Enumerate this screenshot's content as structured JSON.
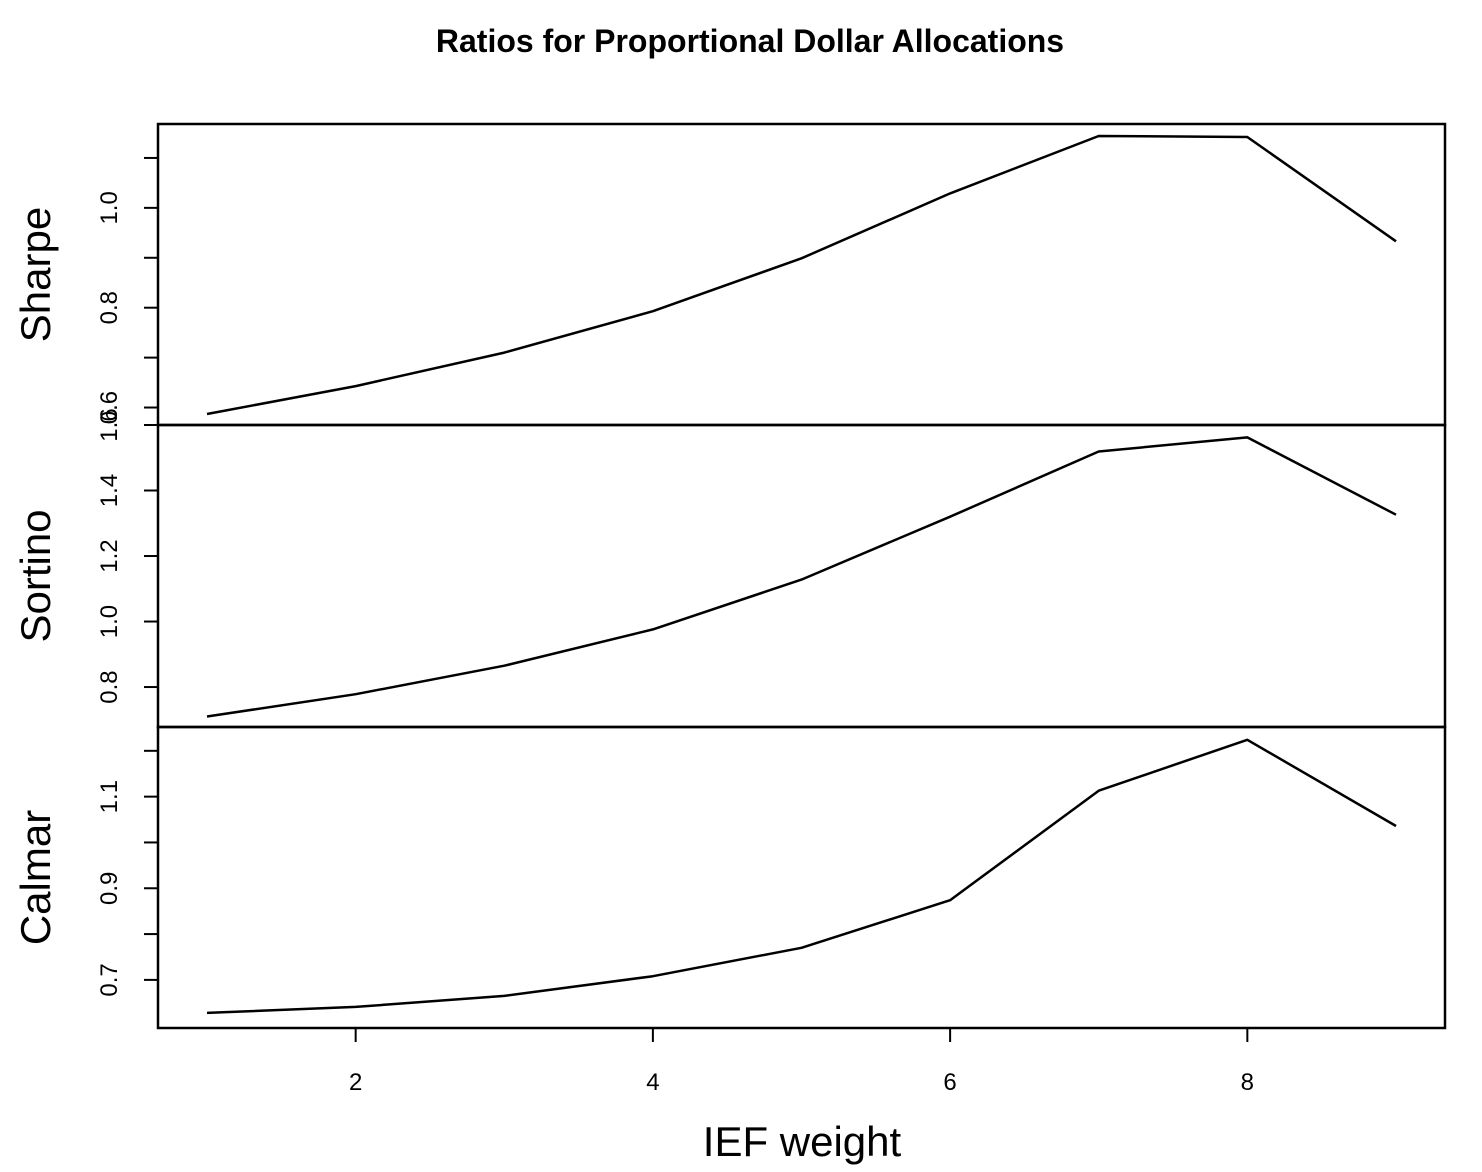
{
  "chart_data": {
    "type": "line",
    "title": "Ratios for Proportional Dollar Allocations",
    "xlabel": "IEF weight",
    "x": [
      1,
      2,
      3,
      4,
      5,
      6,
      7,
      8,
      9
    ],
    "xlim": [
      0.67,
      9.33
    ],
    "x_ticks": [
      2,
      4,
      6,
      8
    ],
    "panels": [
      {
        "name": "Sharpe",
        "ylabel": "Sharpe",
        "values": [
          0.587,
          0.643,
          0.71,
          0.793,
          0.899,
          1.029,
          1.144,
          1.142,
          0.933
        ],
        "ylim": [
          0.565,
          1.168
        ],
        "y_ticks": [
          0.6,
          0.7,
          0.8,
          0.9,
          1.0,
          1.1
        ],
        "y_tick_labels": [
          "0.6",
          "",
          "0.8",
          "",
          "1.0",
          ""
        ]
      },
      {
        "name": "Sortino",
        "ylabel": "Sortino",
        "values": [
          0.71,
          0.778,
          0.865,
          0.976,
          1.128,
          1.32,
          1.519,
          1.562,
          1.326
        ],
        "ylim": [
          0.678,
          1.6
        ],
        "y_ticks": [
          0.8,
          1.0,
          1.2,
          1.4,
          1.6
        ],
        "y_tick_labels": [
          "0.8",
          "1.0",
          "1.2",
          "1.4",
          "1.6"
        ]
      },
      {
        "name": "Calmar",
        "ylabel": "Calmar",
        "values": [
          0.628,
          0.641,
          0.665,
          0.708,
          0.77,
          0.874,
          1.113,
          1.224,
          1.036
        ],
        "ylim": [
          0.595,
          1.252
        ],
        "y_ticks": [
          0.7,
          0.8,
          0.9,
          1.0,
          1.1,
          1.2
        ],
        "y_tick_labels": [
          "0.7",
          "",
          "0.9",
          "",
          "1.1",
          ""
        ]
      }
    ],
    "grid": false,
    "legend": "none",
    "line_color": "#000000"
  }
}
